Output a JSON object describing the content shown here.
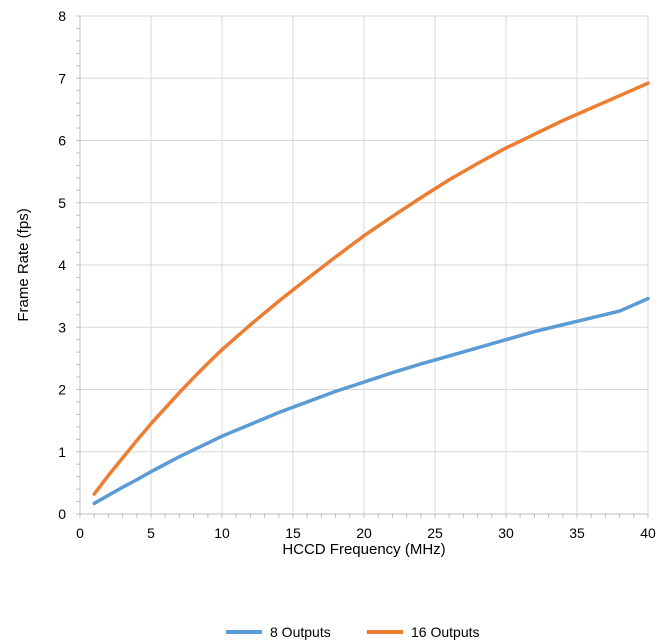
{
  "chart_data": {
    "type": "line",
    "title": "",
    "xlabel": "HCCD Frequency (MHz)",
    "ylabel": "Frame Rate (fps)",
    "xlim": [
      0,
      40
    ],
    "ylim": [
      0,
      8
    ],
    "xticks": [
      0,
      5,
      10,
      15,
      20,
      25,
      30,
      35,
      40
    ],
    "yticks": [
      0,
      1,
      2,
      3,
      4,
      5,
      6,
      7,
      8
    ],
    "grid": true,
    "legend_position": "bottom",
    "series": [
      {
        "name": "8 Outputs",
        "color": "#5b9bd5",
        "x": [
          1,
          2,
          3,
          4,
          5,
          6,
          7,
          8,
          9,
          10,
          12,
          14,
          16,
          18,
          20,
          22,
          24,
          26,
          28,
          30,
          32,
          34,
          36,
          38,
          40
        ],
        "y": [
          0.17,
          0.3,
          0.43,
          0.55,
          0.68,
          0.8,
          0.92,
          1.03,
          1.14,
          1.25,
          1.44,
          1.63,
          1.8,
          1.97,
          2.12,
          2.27,
          2.41,
          2.54,
          2.67,
          2.8,
          2.93,
          3.04,
          3.15,
          3.26,
          3.46
        ]
      },
      {
        "name": "16 Outputs",
        "color": "#ed7d31",
        "x": [
          1,
          2,
          3,
          4,
          5,
          6,
          7,
          8,
          9,
          10,
          12,
          14,
          16,
          18,
          20,
          22,
          24,
          26,
          28,
          30,
          32,
          34,
          36,
          38,
          40
        ],
        "y": [
          0.32,
          0.62,
          0.9,
          1.18,
          1.45,
          1.7,
          1.95,
          2.19,
          2.42,
          2.64,
          3.04,
          3.42,
          3.78,
          4.13,
          4.47,
          4.78,
          5.08,
          5.37,
          5.63,
          5.88,
          6.1,
          6.32,
          6.52,
          6.72,
          6.92
        ]
      }
    ]
  }
}
